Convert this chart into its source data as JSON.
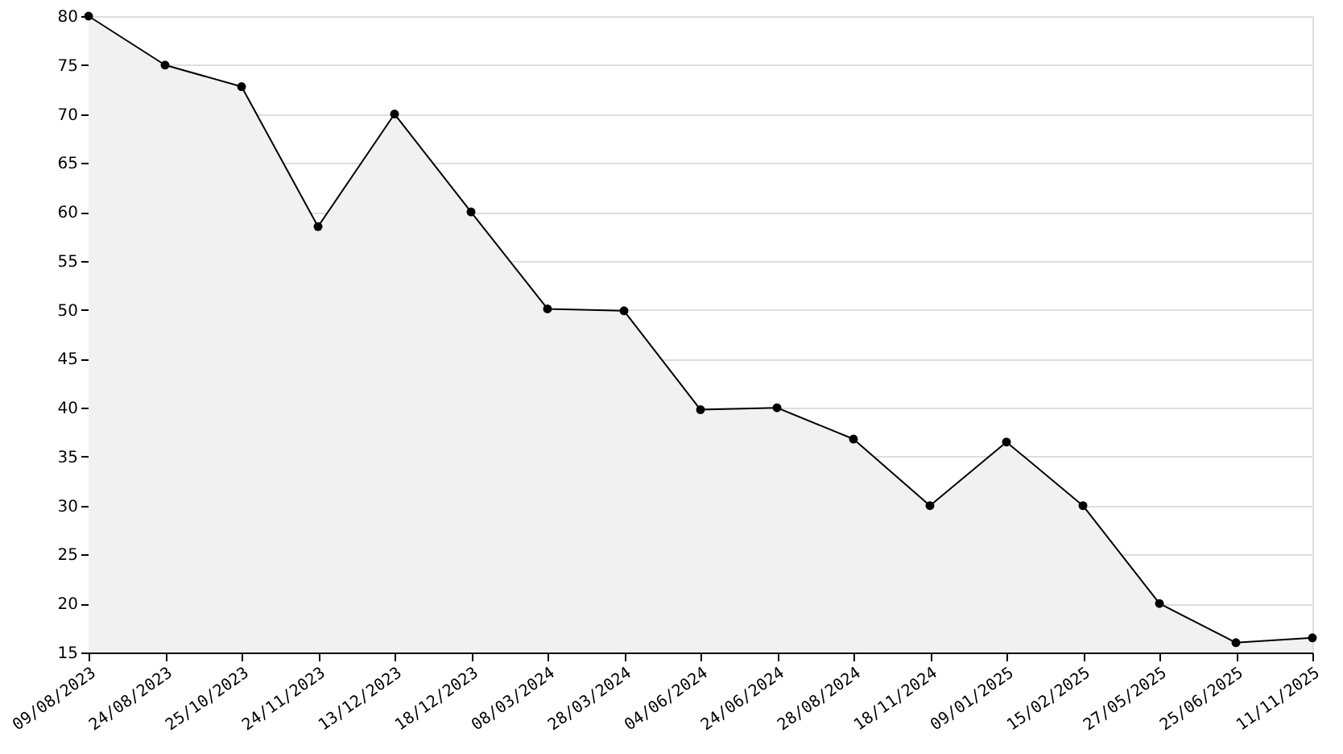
{
  "chart_data": {
    "type": "area",
    "categories": [
      "09/08/2023",
      "24/08/2023",
      "25/10/2023",
      "24/11/2023",
      "13/12/2023",
      "18/12/2023",
      "08/03/2024",
      "28/03/2024",
      "04/06/2024",
      "24/06/2024",
      "28/08/2024",
      "18/11/2024",
      "09/01/2025",
      "15/02/2025",
      "27/05/2025",
      "25/06/2025",
      "11/11/2025"
    ],
    "series": [
      {
        "color": "#000000",
        "values": [
          80,
          75,
          72.8,
          58.5,
          70,
          60,
          50.1,
          49.9,
          39.8,
          40,
          36.8,
          30,
          36.5,
          30,
          20,
          16,
          16.5
        ]
      }
    ],
    "ylim": [
      15,
      80
    ],
    "yticks": [
      15,
      20,
      25,
      30,
      35,
      40,
      45,
      50,
      55,
      60,
      65,
      70,
      75,
      80
    ],
    "grid": "y",
    "marker": "circle",
    "line_style": "solid"
  }
}
